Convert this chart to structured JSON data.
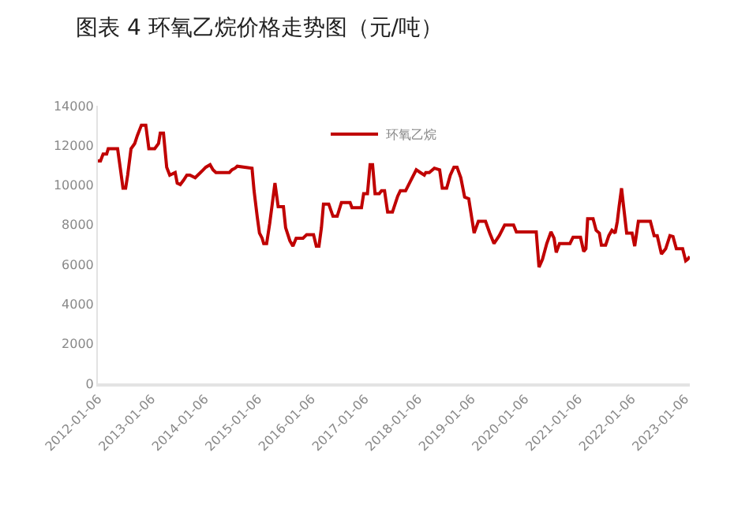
{
  "chart_data": {
    "type": "line",
    "title": "图表 4 环氧乙烷价格走势图（元/吨）",
    "x": [
      "2012-01-06",
      "2012-01-24",
      "2012-02-11",
      "2012-03-06",
      "2012-03-17",
      "2012-05-20",
      "2012-06-09",
      "2012-06-26",
      "2012-07-14",
      "2012-07-28",
      "2012-08-20",
      "2012-09-14",
      "2012-10-02",
      "2012-10-30",
      "2012-11-29",
      "2012-12-20",
      "2013-01-29",
      "2013-02-24",
      "2013-03-08",
      "2013-03-30",
      "2013-04-21",
      "2013-05-12",
      "2013-06-18",
      "2013-07-02",
      "2013-07-23",
      "2013-08-14",
      "2013-09-06",
      "2013-09-27",
      "2013-11-02",
      "2013-12-08",
      "2014-01-14",
      "2014-02-12",
      "2014-03-04",
      "2014-03-24",
      "2014-06-24",
      "2014-07-12",
      "2014-08-02",
      "2014-08-17",
      "2014-11-26",
      "2014-12-10",
      "2015-01-01",
      "2015-01-16",
      "2015-02-03",
      "2015-02-14",
      "2015-03-06",
      "2015-03-27",
      "2015-04-11",
      "2015-05-02",
      "2015-05-24",
      "2015-06-29",
      "2015-07-14",
      "2015-08-12",
      "2015-09-02",
      "2015-09-24",
      "2015-11-10",
      "2015-12-05",
      "2016-01-21",
      "2016-02-09",
      "2016-02-27",
      "2016-03-15",
      "2016-03-29",
      "2016-05-04",
      "2016-06-02",
      "2016-07-01",
      "2016-07-30",
      "2016-09-27",
      "2016-10-10",
      "2016-12-14",
      "2016-12-29",
      "2017-01-24",
      "2017-02-11",
      "2017-02-28",
      "2017-03-17",
      "2017-04-15",
      "2017-04-30",
      "2017-05-21",
      "2017-06-11",
      "2017-07-14",
      "2017-08-19",
      "2017-09-06",
      "2017-10-12",
      "2017-11-17",
      "2017-12-24",
      "2018-01-21",
      "2018-02-17",
      "2018-02-27",
      "2018-03-23",
      "2018-04-27",
      "2018-06-02",
      "2018-06-20",
      "2018-07-20",
      "2018-08-14",
      "2018-09-08",
      "2018-09-29",
      "2018-10-25",
      "2018-11-20",
      "2018-12-18",
      "2019-01-24",
      "2019-02-22",
      "2019-04-12",
      "2019-05-11",
      "2019-06-09",
      "2019-07-15",
      "2019-08-21",
      "2019-10-21",
      "2019-11-09",
      "2020-03-24",
      "2020-04-12",
      "2020-05-06",
      "2020-06-04",
      "2020-07-03",
      "2020-07-24",
      "2020-08-08",
      "2020-08-30",
      "2020-11-10",
      "2020-12-01",
      "2021-01-21",
      "2021-02-12",
      "2021-02-27",
      "2021-03-11",
      "2021-04-17",
      "2021-05-08",
      "2021-05-30",
      "2021-06-13",
      "2021-07-12",
      "2021-08-03",
      "2021-08-24",
      "2021-09-15",
      "2021-09-30",
      "2021-10-12",
      "2021-10-29",
      "2021-11-12",
      "2021-12-03",
      "2022-01-09",
      "2022-01-27",
      "2022-02-21",
      "2022-05-14",
      "2022-06-09",
      "2022-06-30",
      "2022-07-29",
      "2022-08-27",
      "2022-09-25",
      "2022-10-16",
      "2022-11-08",
      "2022-12-21",
      "2023-01-11",
      "2023-01-25",
      "2023-02-08"
    ],
    "series": [
      {
        "name": "环氧乙烷",
        "color": "#c00000",
        "values": [
          11220,
          11220,
          11560,
          11560,
          11830,
          11830,
          10770,
          9840,
          9840,
          10500,
          11830,
          12090,
          12490,
          13020,
          13020,
          11830,
          11830,
          12090,
          12620,
          12620,
          10900,
          10500,
          10630,
          10100,
          10020,
          10240,
          10500,
          10500,
          10370,
          10630,
          10900,
          11030,
          10770,
          10630,
          10630,
          10770,
          10850,
          10950,
          10850,
          9710,
          8380,
          7580,
          7320,
          7050,
          7050,
          8060,
          8910,
          10100,
          8910,
          8910,
          7850,
          7190,
          6920,
          7320,
          7320,
          7500,
          7500,
          6920,
          6920,
          7850,
          9040,
          9040,
          8430,
          8430,
          9120,
          9120,
          8860,
          8860,
          9570,
          9570,
          11030,
          11030,
          9570,
          9570,
          9710,
          9710,
          8640,
          8640,
          9440,
          9710,
          9710,
          10240,
          10770,
          10630,
          10500,
          10630,
          10630,
          10850,
          10770,
          9840,
          9840,
          10500,
          10900,
          10900,
          10370,
          9390,
          9310,
          7580,
          8170,
          8170,
          7580,
          7050,
          7450,
          7980,
          7980,
          7640,
          7640,
          5860,
          6260,
          7050,
          7640,
          7320,
          6600,
          7050,
          7050,
          7370,
          7370,
          6650,
          6790,
          8300,
          8300,
          7720,
          7580,
          6970,
          6970,
          7450,
          7720,
          7580,
          8170,
          8910,
          9840,
          8910,
          7580,
          7580,
          6920,
          8170,
          8170,
          7450,
          7450,
          6520,
          6790,
          7450,
          7400,
          6790,
          6790,
          6180,
          6260,
          6390
        ]
      }
    ],
    "xlim": [
      "2012-01-06",
      "2023-02-08"
    ],
    "xticks": [
      "2012-01-06",
      "2013-01-06",
      "2014-01-06",
      "2015-01-06",
      "2016-01-06",
      "2017-01-06",
      "2018-01-06",
      "2019-01-06",
      "2020-01-06",
      "2021-01-06",
      "2022-01-06",
      "2023-01-06"
    ],
    "ylim": [
      0,
      14000
    ],
    "yticks": [
      0,
      2000,
      4000,
      6000,
      8000,
      10000,
      12000,
      14000
    ],
    "legend": "top",
    "marker": "none",
    "line_style": "solid"
  }
}
